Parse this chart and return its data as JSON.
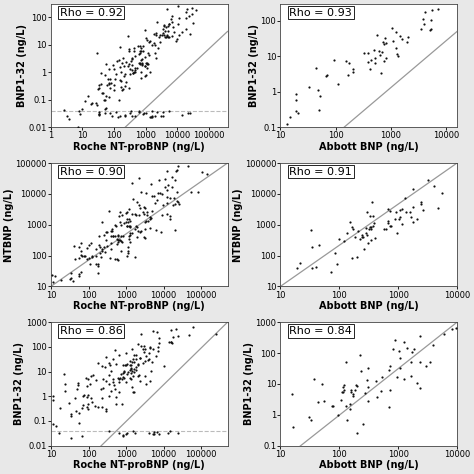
{
  "panels": [
    {
      "rho": "Rho = 0.92",
      "xlabel": "Roche NT-proBNP (ng/L)",
      "ylabel": "BNP1-32 (ng/L)",
      "xlim": [
        1,
        400000
      ],
      "ylim": [
        0.01,
        300
      ],
      "xticks": [
        1,
        10,
        100,
        1000,
        10000,
        100000
      ],
      "yticks": [
        0.01,
        0.1,
        1,
        10,
        100
      ],
      "xticklabels": [
        "1",
        "10",
        "100",
        "1000",
        "10000",
        "100000"
      ],
      "yticklabels": [
        "0.01",
        "0.1",
        "1",
        "10",
        "100"
      ],
      "has_dashed": true,
      "dashed_y": 0.04,
      "line_x0": 1,
      "line_x1": 400000,
      "line_y0": 3e-05,
      "line_y1": 30,
      "row": 0,
      "col": 0,
      "n_points": 220,
      "seed": 42,
      "x_mean_log": 2.8,
      "x_std_log": 1.0,
      "y_mean_log": 0.5,
      "y_std_log": 1.1,
      "rho_val": 0.92
    },
    {
      "rho": "Rho = 0.93",
      "xlabel": "Abbott BNP (ng/L)",
      "ylabel": "BNP1-32 (ng/L)",
      "xlim": [
        10,
        16000
      ],
      "ylim": [
        0.1,
        300
      ],
      "xticks": [
        10,
        100,
        1000,
        10000
      ],
      "yticks": [
        0.1,
        1,
        10,
        100
      ],
      "xticklabels": [
        "10",
        "100",
        "1000",
        "10000"
      ],
      "yticklabels": [
        "0.1",
        "1",
        "10",
        "100"
      ],
      "has_dashed": false,
      "dashed_y": null,
      "line_x0": 10,
      "line_x1": 16000,
      "line_y0": 0.003,
      "line_y1": 50,
      "row": 0,
      "col": 1,
      "n_points": 65,
      "seed": 43,
      "x_mean_log": 2.7,
      "x_std_log": 0.85,
      "y_mean_log": 1.0,
      "y_std_log": 0.85,
      "rho_val": 0.93
    },
    {
      "rho": "Rho = 0.90",
      "xlabel": "Roche NT-proBNP (ng/L)",
      "ylabel": "NTBNP (ng/L)",
      "xlim": [
        10,
        500000
      ],
      "ylim": [
        10,
        100000
      ],
      "xticks": [
        10,
        100,
        1000,
        10000,
        100000
      ],
      "yticks": [
        10,
        100,
        1000,
        10000,
        100000
      ],
      "xticklabels": [
        "10",
        "100",
        "1000",
        "10000",
        "100000"
      ],
      "yticklabels": [
        "10",
        "100",
        "1000",
        "10000",
        "100000"
      ],
      "has_dashed": false,
      "dashed_y": null,
      "line_x0": 10,
      "line_x1": 500000,
      "line_y0": 10,
      "line_y1": 100000,
      "row": 1,
      "col": 0,
      "n_points": 200,
      "seed": 44,
      "x_mean_log": 3.1,
      "x_std_log": 1.0,
      "y_mean_log": 3.0,
      "y_std_log": 1.0,
      "rho_val": 0.9
    },
    {
      "rho": "Rho = 0.91",
      "xlabel": "Abbott BNP (ng/L)",
      "ylabel": "NTBNP (ng/L)",
      "xlim": [
        10,
        10000
      ],
      "ylim": [
        10,
        100000
      ],
      "xticks": [
        10,
        100,
        1000,
        10000
      ],
      "yticks": [
        10,
        100,
        1000,
        10000,
        100000
      ],
      "xticklabels": [
        "10",
        "100",
        "1000",
        "10000"
      ],
      "yticklabels": [
        "10",
        "100",
        "1000",
        "10000",
        "100000"
      ],
      "has_dashed": false,
      "dashed_y": null,
      "line_x0": 10,
      "line_x1": 10000,
      "line_y0": 10,
      "line_y1": 100000,
      "row": 1,
      "col": 1,
      "n_points": 80,
      "seed": 45,
      "x_mean_log": 2.6,
      "x_std_log": 0.8,
      "y_mean_log": 2.9,
      "y_std_log": 0.85,
      "rho_val": 0.91
    },
    {
      "rho": "Rho = 0.86",
      "xlabel": "Roche NT-proBNP (ng/L)",
      "ylabel": "BNP1-32 (ng/L)",
      "xlim": [
        10,
        500000
      ],
      "ylim": [
        0.01,
        1000
      ],
      "xticks": [
        10,
        100,
        1000,
        10000,
        100000
      ],
      "yticks": [
        0.01,
        0.1,
        1,
        10,
        100,
        1000
      ],
      "xticklabels": [
        "10",
        "100",
        "1000",
        "10000",
        "100000"
      ],
      "yticklabels": [
        "0.01",
        "0.1",
        "1",
        "10",
        "100",
        "1000"
      ],
      "has_dashed": true,
      "dashed_y": 0.04,
      "line_x0": 10,
      "line_x1": 500000,
      "line_y0": 0.0001,
      "line_y1": 1000,
      "row": 2,
      "col": 0,
      "n_points": 190,
      "seed": 46,
      "x_mean_log": 2.9,
      "x_std_log": 1.0,
      "y_mean_log": 1.0,
      "y_std_log": 1.1,
      "rho_val": 0.86
    },
    {
      "rho": "Rho = 0.84",
      "xlabel": "Abbott BNP (ng/L)",
      "ylabel": "BNP1-32 (ng/L)",
      "xlim": [
        10,
        10000
      ],
      "ylim": [
        0.1,
        1000
      ],
      "xticks": [
        10,
        100,
        1000,
        10000
      ],
      "yticks": [
        0.1,
        1,
        10,
        100,
        1000
      ],
      "xticklabels": [
        "10",
        "100",
        "1000",
        "10000"
      ],
      "yticklabels": [
        "0.1",
        "1",
        "10",
        "100",
        "1000"
      ],
      "has_dashed": false,
      "dashed_y": null,
      "line_x0": 10,
      "line_x1": 10000,
      "line_y0": 0.03,
      "line_y1": 1000,
      "row": 2,
      "col": 1,
      "n_points": 75,
      "seed": 47,
      "x_mean_log": 2.6,
      "x_std_log": 0.8,
      "y_mean_log": 1.1,
      "y_std_log": 0.9,
      "rho_val": 0.84
    }
  ],
  "bg_color": "#e8e8e8",
  "panel_bg": "#ffffff",
  "point_color": "#111111",
  "point_size": 2.5,
  "line_color": "#999999",
  "dashed_color": "#bbbbbb",
  "font_family": "DejaVu Sans",
  "font_size_label": 7,
  "font_size_tick": 6,
  "font_size_rho": 8
}
